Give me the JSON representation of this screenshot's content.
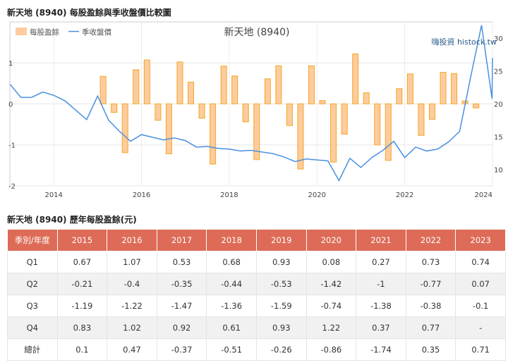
{
  "chart_title": "新天地 (8940) 每股盈餘與季收盤價比較圖",
  "table_title": "新天地 (8940) 歷年每股盈餘(元)",
  "chart_data": {
    "type": "bar+line",
    "title": "新天地 (8940)",
    "watermark": "嗨投資 histock.tw",
    "legend": [
      {
        "label": "每股盈餘",
        "kind": "bar",
        "color": "#fdcc9e"
      },
      {
        "label": "季收盤價",
        "kind": "line",
        "color": "#4a90e2"
      }
    ],
    "legend_position": "top-left",
    "left_axis": {
      "min": -2,
      "max": 2,
      "ticks": [
        "-2",
        "-1",
        "0",
        "1"
      ]
    },
    "right_axis": {
      "min": 7.5,
      "max": 32.5,
      "ticks": [
        "10",
        "15",
        "20",
        "25",
        "30"
      ]
    },
    "x_axis": {
      "min": 2013.0,
      "max": 2024.0,
      "ticks": [
        "2014",
        "2016",
        "2018",
        "2020",
        "2022",
        "2024"
      ]
    },
    "grid": true,
    "bar_color": "#fdcc9e",
    "bar_stroke": "#f5a623",
    "line_color": "#4a90e2",
    "eps_quarters": [
      {
        "q": "2015Q1",
        "v": 0.67
      },
      {
        "q": "2015Q2",
        "v": -0.21
      },
      {
        "q": "2015Q3",
        "v": -1.19
      },
      {
        "q": "2015Q4",
        "v": 0.83
      },
      {
        "q": "2016Q1",
        "v": 1.07
      },
      {
        "q": "2016Q2",
        "v": -0.4
      },
      {
        "q": "2016Q3",
        "v": -1.22
      },
      {
        "q": "2016Q4",
        "v": 1.02
      },
      {
        "q": "2017Q1",
        "v": 0.53
      },
      {
        "q": "2017Q2",
        "v": -0.35
      },
      {
        "q": "2017Q3",
        "v": -1.47
      },
      {
        "q": "2017Q4",
        "v": 0.92
      },
      {
        "q": "2018Q1",
        "v": 0.68
      },
      {
        "q": "2018Q2",
        "v": -0.44
      },
      {
        "q": "2018Q3",
        "v": -1.36
      },
      {
        "q": "2018Q4",
        "v": 0.61
      },
      {
        "q": "2019Q1",
        "v": 0.93
      },
      {
        "q": "2019Q2",
        "v": -0.53
      },
      {
        "q": "2019Q3",
        "v": -1.59
      },
      {
        "q": "2019Q4",
        "v": 0.93
      },
      {
        "q": "2020Q1",
        "v": 0.08
      },
      {
        "q": "2020Q2",
        "v": -1.42
      },
      {
        "q": "2020Q3",
        "v": -0.74
      },
      {
        "q": "2020Q4",
        "v": 1.22
      },
      {
        "q": "2021Q1",
        "v": 0.27
      },
      {
        "q": "2021Q2",
        "v": -1
      },
      {
        "q": "2021Q3",
        "v": -1.38
      },
      {
        "q": "2021Q4",
        "v": 0.37
      },
      {
        "q": "2022Q1",
        "v": 0.73
      },
      {
        "q": "2022Q2",
        "v": -0.77
      },
      {
        "q": "2022Q3",
        "v": -0.38
      },
      {
        "q": "2022Q4",
        "v": 0.77
      },
      {
        "q": "2023Q1",
        "v": 0.74
      },
      {
        "q": "2023Q2",
        "v": 0.07
      },
      {
        "q": "2023Q3",
        "v": -0.1
      }
    ],
    "price": [
      {
        "t": 2013.0,
        "v": 23.0
      },
      {
        "t": 2013.25,
        "v": 21.0
      },
      {
        "t": 2013.5,
        "v": 21.0
      },
      {
        "t": 2013.75,
        "v": 21.8
      },
      {
        "t": 2014.0,
        "v": 21.3
      },
      {
        "t": 2014.25,
        "v": 20.5
      },
      {
        "t": 2014.75,
        "v": 17.6
      },
      {
        "t": 2015.0,
        "v": 21.2
      },
      {
        "t": 2015.25,
        "v": 17.5
      },
      {
        "t": 2015.5,
        "v": 15.8
      },
      {
        "t": 2015.75,
        "v": 14.3
      },
      {
        "t": 2016.0,
        "v": 15.3
      },
      {
        "t": 2016.5,
        "v": 14.5
      },
      {
        "t": 2016.75,
        "v": 14.8
      },
      {
        "t": 2017.0,
        "v": 14.4
      },
      {
        "t": 2017.25,
        "v": 13.4
      },
      {
        "t": 2017.5,
        "v": 13.5
      },
      {
        "t": 2017.75,
        "v": 13.2
      },
      {
        "t": 2018.0,
        "v": 13.1
      },
      {
        "t": 2018.25,
        "v": 12.8
      },
      {
        "t": 2018.5,
        "v": 12.9
      },
      {
        "t": 2019.0,
        "v": 12.4
      },
      {
        "t": 2019.25,
        "v": 11.9
      },
      {
        "t": 2019.5,
        "v": 11.2
      },
      {
        "t": 2019.75,
        "v": 11.6
      },
      {
        "t": 2020.25,
        "v": 11.3
      },
      {
        "t": 2020.5,
        "v": 8.3
      },
      {
        "t": 2020.75,
        "v": 11.7
      },
      {
        "t": 2021.0,
        "v": 10.3
      },
      {
        "t": 2021.25,
        "v": 11.8
      },
      {
        "t": 2021.5,
        "v": 12.9
      },
      {
        "t": 2021.75,
        "v": 14.3
      },
      {
        "t": 2022.0,
        "v": 11.8
      },
      {
        "t": 2022.25,
        "v": 13.4
      },
      {
        "t": 2022.5,
        "v": 12.8
      },
      {
        "t": 2022.75,
        "v": 13.1
      },
      {
        "t": 2023.0,
        "v": 14.2
      },
      {
        "t": 2023.25,
        "v": 15.8
      },
      {
        "t": 2023.5,
        "v": 24.0
      },
      {
        "t": 2023.75,
        "v": 32.0
      },
      {
        "t": 2023.99,
        "v": 20.8
      },
      {
        "t": 2024.0,
        "v": 27.0
      }
    ]
  },
  "table": {
    "headers": [
      "季別/年度",
      "2015",
      "2016",
      "2017",
      "2018",
      "2019",
      "2020",
      "2021",
      "2022",
      "2023"
    ],
    "rows": [
      [
        "Q1",
        "0.67",
        "1.07",
        "0.53",
        "0.68",
        "0.93",
        "0.08",
        "0.27",
        "0.73",
        "0.74"
      ],
      [
        "Q2",
        "-0.21",
        "-0.4",
        "-0.35",
        "-0.44",
        "-0.53",
        "-1.42",
        "-1",
        "-0.77",
        "0.07"
      ],
      [
        "Q3",
        "-1.19",
        "-1.22",
        "-1.47",
        "-1.36",
        "-1.59",
        "-0.74",
        "-1.38",
        "-0.38",
        "-0.1"
      ],
      [
        "Q4",
        "0.83",
        "1.02",
        "0.92",
        "0.61",
        "0.93",
        "1.22",
        "0.37",
        "0.77",
        "-"
      ],
      [
        "總計",
        "0.1",
        "0.47",
        "-0.37",
        "-0.51",
        "-0.26",
        "-0.86",
        "-1.74",
        "0.35",
        "0.71"
      ]
    ]
  }
}
